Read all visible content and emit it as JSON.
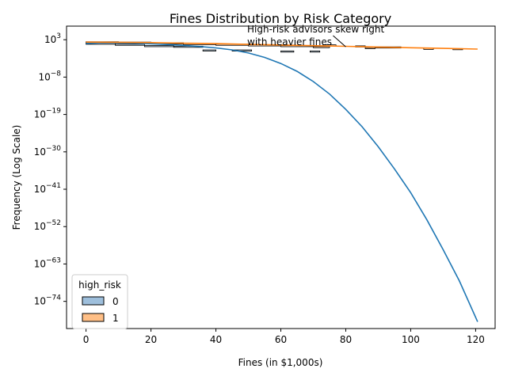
{
  "chart_data": {
    "type": "histogram+kde",
    "title": "Fines Distribution by Risk Category",
    "xlabel": "Fines (in $1,000s)",
    "ylabel": "Frequency (Log Scale)",
    "y_scale": "log",
    "xlim": [
      -6,
      126
    ],
    "ylim_log10": [
      -82,
      7
    ],
    "x_ticks": [
      0,
      20,
      40,
      60,
      80,
      100,
      120
    ],
    "y_tick_exponents": [
      3,
      -8,
      -19,
      -30,
      -41,
      -52,
      -63,
      -74
    ],
    "grid": false,
    "legend": {
      "title": "high_risk",
      "placement": "lower-left",
      "entries": [
        "0",
        "1"
      ]
    },
    "annotation": {
      "lines": [
        "High-risk advisors skew right",
        "with heavier fines"
      ],
      "points_to_x": 80,
      "points_to_log10_y": 0.9
    },
    "series": [
      {
        "name": "0",
        "color": "#1f77b4",
        "fill": "#9ebfdc",
        "kde_log10": [
          {
            "x": 0,
            "y": 1.9
          },
          {
            "x": 5,
            "y": 2.1
          },
          {
            "x": 10,
            "y": 2.05
          },
          {
            "x": 15,
            "y": 1.95
          },
          {
            "x": 20,
            "y": 1.8
          },
          {
            "x": 25,
            "y": 1.6
          },
          {
            "x": 30,
            "y": 1.35
          },
          {
            "x": 35,
            "y": 1.0
          },
          {
            "x": 40,
            "y": 0.6
          },
          {
            "x": 45,
            "y": 0.0
          },
          {
            "x": 50,
            "y": -0.9
          },
          {
            "x": 55,
            "y": -2.2
          },
          {
            "x": 60,
            "y": -4.0
          },
          {
            "x": 65,
            "y": -6.3
          },
          {
            "x": 70,
            "y": -9.3
          },
          {
            "x": 75,
            "y": -13.0
          },
          {
            "x": 80,
            "y": -17.5
          },
          {
            "x": 85,
            "y": -22.6
          },
          {
            "x": 90,
            "y": -28.5
          },
          {
            "x": 95,
            "y": -35.0
          },
          {
            "x": 100,
            "y": -42.0
          },
          {
            "x": 105,
            "y": -50.0
          },
          {
            "x": 110,
            "y": -58.8
          },
          {
            "x": 115,
            "y": -68.0
          },
          {
            "x": 120.6,
            "y": -80.0
          }
        ],
        "bars_log10": [
          {
            "x0": 0,
            "x1": 9,
            "y": 2.0
          },
          {
            "x0": 9,
            "x1": 18,
            "y": 1.7
          },
          {
            "x0": 18,
            "x1": 27,
            "y": 1.3
          },
          {
            "x0": 27,
            "x1": 36,
            "y": 1.1
          },
          {
            "x0": 36,
            "x1": 40,
            "y": 0.0
          },
          {
            "x0": 45,
            "x1": 51,
            "y": 0.0
          },
          {
            "x0": 60,
            "x1": 64,
            "y": -0.3
          },
          {
            "x0": 69,
            "x1": 72,
            "y": -0.3
          }
        ]
      },
      {
        "name": "1",
        "color": "#ff7f0e",
        "fill": "#ffbf86",
        "kde_log10": [
          {
            "x": 0,
            "y": 2.3
          },
          {
            "x": 10,
            "y": 2.25
          },
          {
            "x": 20,
            "y": 2.15
          },
          {
            "x": 30,
            "y": 2.0
          },
          {
            "x": 40,
            "y": 1.85
          },
          {
            "x": 50,
            "y": 1.65
          },
          {
            "x": 60,
            "y": 1.45
          },
          {
            "x": 70,
            "y": 1.25
          },
          {
            "x": 80,
            "y": 1.05
          },
          {
            "x": 90,
            "y": 0.85
          },
          {
            "x": 100,
            "y": 0.65
          },
          {
            "x": 110,
            "y": 0.45
          },
          {
            "x": 120.6,
            "y": 0.25
          }
        ],
        "bars_log10": [
          {
            "x0": 0,
            "x1": 10,
            "y": 2.4
          },
          {
            "x0": 10,
            "x1": 20,
            "y": 2.3
          },
          {
            "x0": 20,
            "x1": 30,
            "y": 2.1
          },
          {
            "x0": 30,
            "x1": 40,
            "y": 1.9
          },
          {
            "x0": 40,
            "x1": 50,
            "y": 1.7
          },
          {
            "x0": 50,
            "x1": 60,
            "y": 1.5
          },
          {
            "x0": 60,
            "x1": 70,
            "y": 1.3
          },
          {
            "x0": 70,
            "x1": 75,
            "y": 1.0
          },
          {
            "x0": 73,
            "x1": 77,
            "y": 1.5
          },
          {
            "x0": 83,
            "x1": 86,
            "y": 1.2
          },
          {
            "x0": 86,
            "x1": 89,
            "y": 0.7
          },
          {
            "x0": 89,
            "x1": 97,
            "y": 0.9
          },
          {
            "x0": 104,
            "x1": 107,
            "y": 0.5
          },
          {
            "x0": 113,
            "x1": 116,
            "y": 0.4
          }
        ]
      }
    ]
  }
}
